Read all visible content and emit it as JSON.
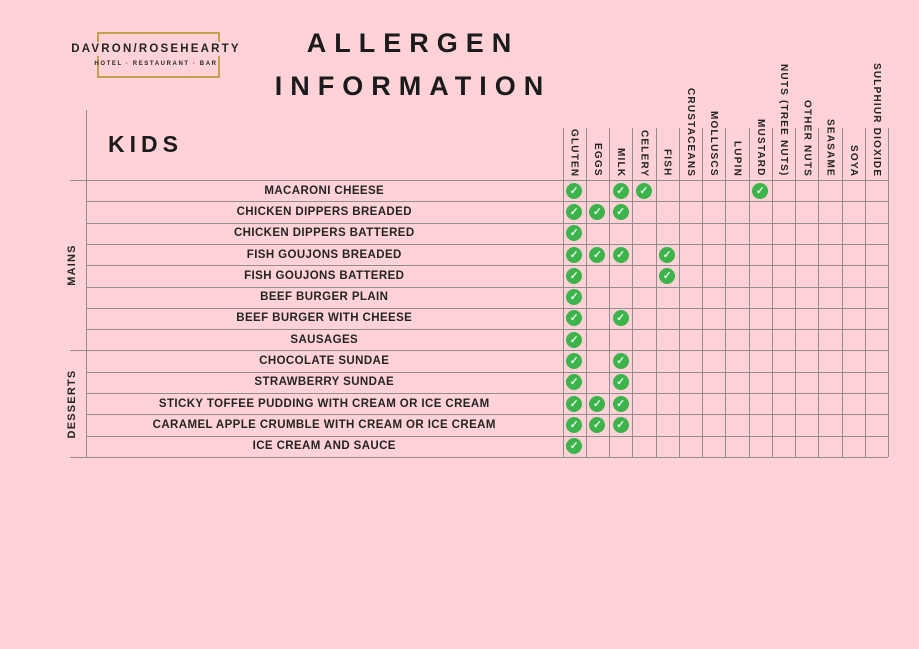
{
  "theme": {
    "background": "#FED2D6",
    "grid_line": "#8F8F8F",
    "text": "#242424",
    "check_green": "#3CB44B",
    "check_mark": "#EAF8EE",
    "logo_gold": "#C3A24B"
  },
  "logo": {
    "name": "DAVRON/ROSEHEARTY",
    "tagline": "HOTEL · RESTAURANT · BAR"
  },
  "title": {
    "line1": "ALLERGEN",
    "line2": "INFORMATION"
  },
  "menu_title": "KIDS",
  "check_icon": "✓",
  "allergen_columns": [
    "GLUTEN",
    "EGGS",
    "MILK",
    "CELERY",
    "FISH",
    "CRUSTACEANS",
    "MOLLUSCS",
    "LUPIN",
    "MUSTARD",
    "NUTS (TREE NUTS)",
    "OTHER NUTS",
    "SEASAME",
    "SOYA",
    "SULPHIUR DIOXIDE"
  ],
  "categories": [
    {
      "label": "MAINS",
      "dishes": [
        {
          "name": "MACARONI CHEESE",
          "allergens": [
            "GLUTEN",
            "MILK",
            "CELERY",
            "MUSTARD"
          ]
        },
        {
          "name": "CHICKEN DIPPERS BREADED",
          "allergens": [
            "GLUTEN",
            "EGGS",
            "MILK"
          ]
        },
        {
          "name": "CHICKEN DIPPERS BATTERED",
          "allergens": [
            "GLUTEN"
          ]
        },
        {
          "name": "FISH GOUJONS BREADED",
          "allergens": [
            "GLUTEN",
            "EGGS",
            "MILK",
            "FISH"
          ]
        },
        {
          "name": "FISH GOUJONS BATTERED",
          "allergens": [
            "GLUTEN",
            "FISH"
          ]
        },
        {
          "name": "BEEF BURGER PLAIN",
          "allergens": [
            "GLUTEN"
          ]
        },
        {
          "name": "BEEF BURGER WITH CHEESE",
          "allergens": [
            "GLUTEN",
            "MILK"
          ]
        },
        {
          "name": "SAUSAGES",
          "allergens": [
            "GLUTEN"
          ]
        }
      ]
    },
    {
      "label": "DESSERTS",
      "dishes": [
        {
          "name": "CHOCOLATE SUNDAE",
          "allergens": [
            "GLUTEN",
            "MILK"
          ]
        },
        {
          "name": "STRAWBERRY SUNDAE",
          "allergens": [
            "GLUTEN",
            "MILK"
          ]
        },
        {
          "name": "STICKY TOFFEE PUDDING WITH CREAM OR ICE CREAM",
          "allergens": [
            "GLUTEN",
            "EGGS",
            "MILK"
          ]
        },
        {
          "name": "CARAMEL APPLE CRUMBLE WITH CREAM OR ICE CREAM",
          "allergens": [
            "GLUTEN",
            "EGGS",
            "MILK"
          ]
        },
        {
          "name": "ICE CREAM AND SAUCE",
          "allergens": [
            "GLUTEN"
          ]
        }
      ]
    }
  ]
}
